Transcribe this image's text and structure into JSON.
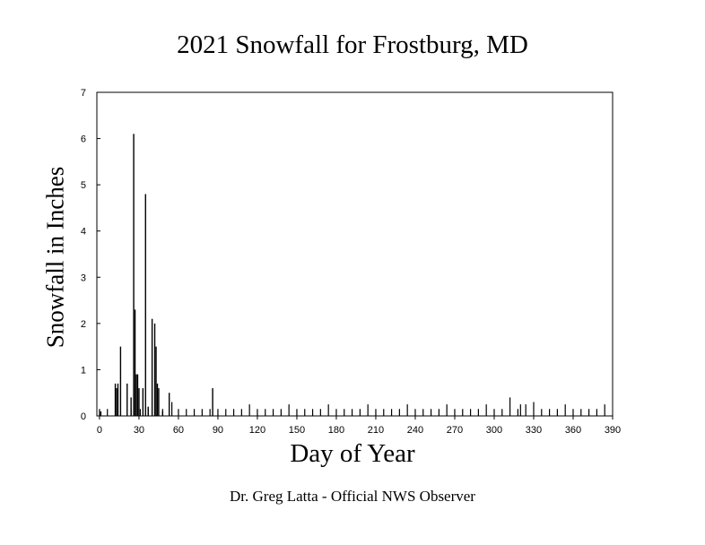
{
  "chart_data": {
    "type": "bar",
    "title": "2021 Snowfall for Frostburg, MD",
    "xlabel": "Day of Year",
    "ylabel": "Snowfall in Inches",
    "footer": "Dr. Greg Latta - Official NWS Observer",
    "xlim": [
      -2,
      390
    ],
    "ylim": [
      0,
      7
    ],
    "xticks": [
      0,
      30,
      60,
      90,
      120,
      150,
      180,
      210,
      240,
      270,
      300,
      330,
      360,
      390
    ],
    "yticks": [
      0,
      1,
      2,
      3,
      4,
      5,
      6,
      7
    ],
    "bar_color": "#000000",
    "x": [
      1,
      12,
      13,
      14,
      16,
      21,
      24,
      26,
      27,
      28,
      29,
      30,
      33,
      35,
      37,
      40,
      42,
      43,
      44,
      45,
      48,
      53,
      86
    ],
    "values": [
      0.1,
      0.7,
      0.6,
      0.7,
      1.5,
      0.7,
      0.4,
      6.1,
      2.3,
      0.9,
      0.9,
      0.6,
      0.6,
      4.8,
      0.2,
      2.1,
      2.0,
      1.5,
      0.7,
      0.6,
      0.1,
      0.5,
      0.6
    ],
    "trace_x": [
      0,
      6,
      24,
      31,
      37,
      48,
      55,
      60,
      66,
      72,
      78,
      84,
      90,
      96,
      102,
      108,
      114,
      120,
      126,
      132,
      138,
      144,
      150,
      156,
      162,
      168,
      174,
      180,
      186,
      192,
      198,
      204,
      210,
      216,
      222,
      228,
      234,
      240,
      246,
      252,
      258,
      264,
      270,
      276,
      282,
      288,
      294,
      300,
      306,
      312,
      318,
      320,
      324,
      330,
      336,
      342,
      348,
      354,
      360,
      366,
      372,
      378,
      384
    ],
    "trace_values": [
      0.15,
      0.15,
      0.15,
      0.15,
      0.15,
      0.15,
      0.3,
      0.15,
      0.15,
      0.15,
      0.15,
      0.15,
      0.15,
      0.15,
      0.15,
      0.15,
      0.25,
      0.15,
      0.15,
      0.15,
      0.15,
      0.25,
      0.15,
      0.15,
      0.15,
      0.15,
      0.25,
      0.15,
      0.15,
      0.15,
      0.15,
      0.25,
      0.15,
      0.15,
      0.15,
      0.15,
      0.25,
      0.15,
      0.15,
      0.15,
      0.15,
      0.25,
      0.15,
      0.15,
      0.15,
      0.15,
      0.25,
      0.15,
      0.15,
      0.4,
      0.15,
      0.25,
      0.25,
      0.3,
      0.15,
      0.15,
      0.15,
      0.25,
      0.15,
      0.15,
      0.15,
      0.15,
      0.25
    ]
  }
}
